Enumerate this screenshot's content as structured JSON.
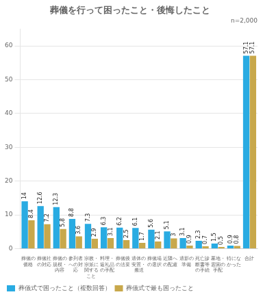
{
  "chart_data": {
    "type": "bar",
    "title": "葬儀を行って困ったこと・後悔したこと",
    "annotations": [
      "n=2,000"
    ],
    "categories": [
      "葬儀の\n価格",
      "葬儀社\nの対応",
      "葬儀の\n規模・\n内容",
      "参列者\nへの対\n応",
      "宗教・\n宗派に\n関する\nこと",
      "料理・\n返礼品\nの手配",
      "葬儀後\nの法要",
      "遺体の\n安置・\n搬送",
      "葬儀場\nの選択",
      "近隣へ\nの配慮",
      "遺影の\n準備",
      "死亡診\n断書等\nの手続",
      "墓地・\n霊園の\n手配",
      "特にな\nかった",
      "合計"
    ],
    "series": [
      {
        "name": "葬儀式で困ったこと（複数回答）",
        "color": "#29ABE2",
        "values": [
          14.0,
          12.6,
          12.3,
          8.8,
          7.3,
          6.3,
          6.2,
          6.1,
          5.6,
          5.1,
          3.1,
          2.3,
          1.5,
          0.9,
          57.1
        ]
      },
      {
        "name": "葬儀式で最も困ったこと",
        "color": "#C8A84B",
        "values": [
          8.4,
          7.2,
          5.8,
          3.6,
          2.9,
          3.1,
          2.5,
          1.7,
          2.1,
          3.0,
          0.9,
          0.7,
          0.5,
          0.8,
          57.1
        ]
      }
    ],
    "ylim": [
      0,
      65
    ],
    "yticks": [
      0,
      10,
      20,
      30,
      40,
      50,
      60
    ],
    "grid": true,
    "legend": "bottom",
    "data_labels": true
  }
}
